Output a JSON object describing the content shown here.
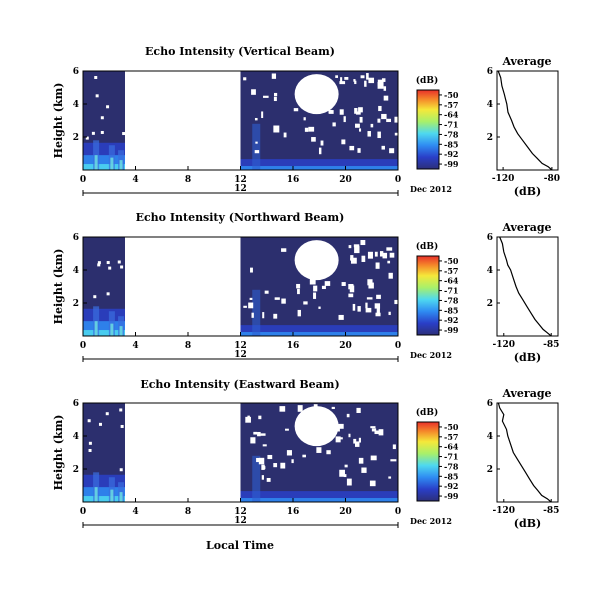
{
  "figure": {
    "xlabel": "Local Time",
    "ylabel": "Height (km)",
    "date_label": "Dec 2012",
    "day_label": "12",
    "avg_xlabel": "(dB)",
    "avg_title": "Average",
    "colorbar_unit": "(dB)",
    "colorbar_ticks": [
      "-50",
      "-57",
      "-64",
      "-71",
      "-78",
      "-85",
      "-92",
      "-99"
    ],
    "colorbar_range": [
      -99,
      -50
    ]
  },
  "chart_data": [
    {
      "type": "heatmap",
      "title": "Echo Intensity (Vertical Beam)",
      "xlabel": "",
      "ylabel": "Height (km)",
      "xticks": [
        "0",
        "4",
        "8",
        "12",
        "16",
        "20",
        "0"
      ],
      "yticks": [
        "6",
        "4",
        "2"
      ],
      "xlim": [
        0,
        24
      ],
      "ylim": [
        0,
        6
      ],
      "missing_data_hours": [
        3.2,
        12.0
      ],
      "colorbar_range_dB": [
        -99,
        -50
      ]
    },
    {
      "type": "line",
      "title": "Average",
      "xlabel": "(dB)",
      "ylabel": "",
      "xticks": [
        "-120",
        "-80"
      ],
      "yticks": [
        "6",
        "4",
        "2"
      ],
      "xlim": [
        -125,
        -75
      ],
      "ylim": [
        0,
        6
      ],
      "series": [
        {
          "x": [
            -124,
            -122,
            -121,
            -119,
            -118,
            -117,
            -116,
            -113,
            -111,
            -108,
            -104,
            -100,
            -96,
            -92,
            -88,
            -83,
            -80
          ],
          "y": [
            6.0,
            5.6,
            5.1,
            4.6,
            4.3,
            4.0,
            3.5,
            3.0,
            2.6,
            2.2,
            1.8,
            1.4,
            1.0,
            0.7,
            0.4,
            0.2,
            0.0
          ]
        }
      ]
    },
    {
      "type": "heatmap",
      "title": "Echo Intensity (Northward Beam)",
      "xlabel": "",
      "ylabel": "Height (km)",
      "xticks": [
        "0",
        "4",
        "8",
        "12",
        "16",
        "20",
        "0"
      ],
      "yticks": [
        "6",
        "4",
        "2"
      ],
      "xlim": [
        0,
        24
      ],
      "ylim": [
        0,
        6
      ],
      "missing_data_hours": [
        3.2,
        12.0
      ],
      "colorbar_range_dB": [
        -99,
        -50
      ]
    },
    {
      "type": "line",
      "title": "Average",
      "xlabel": "(dB)",
      "ylabel": "",
      "xticks": [
        "-120",
        "-85"
      ],
      "yticks": [
        "6",
        "4",
        "2"
      ],
      "xlim": [
        -125,
        -80
      ],
      "ylim": [
        0,
        6
      ],
      "series": [
        {
          "x": [
            -123,
            -121,
            -120,
            -118,
            -117,
            -115,
            -113,
            -111,
            -109,
            -106,
            -103,
            -100,
            -97,
            -94,
            -91,
            -88,
            -85
          ],
          "y": [
            6.0,
            5.6,
            5.1,
            4.6,
            4.3,
            4.0,
            3.5,
            3.0,
            2.6,
            2.2,
            1.8,
            1.4,
            1.0,
            0.7,
            0.4,
            0.2,
            0.0
          ]
        }
      ]
    },
    {
      "type": "heatmap",
      "title": "Echo Intensity (Eastward Beam)",
      "xlabel": "Local Time",
      "ylabel": "Height (km)",
      "xticks": [
        "0",
        "4",
        "8",
        "12",
        "16",
        "20",
        "0"
      ],
      "yticks": [
        "6",
        "4",
        "2"
      ],
      "xlim": [
        0,
        24
      ],
      "ylim": [
        0,
        6
      ],
      "missing_data_hours": [
        3.2,
        12.0
      ],
      "colorbar_range_dB": [
        -99,
        -50
      ]
    },
    {
      "type": "line",
      "title": "Average",
      "xlabel": "(dB)",
      "ylabel": "",
      "xticks": [
        "-120",
        "-85"
      ],
      "yticks": [
        "6",
        "4",
        "2"
      ],
      "xlim": [
        -125,
        -80
      ],
      "ylim": [
        0,
        6
      ],
      "series": [
        {
          "x": [
            -124,
            -123,
            -120,
            -121,
            -118,
            -117,
            -115,
            -113,
            -110,
            -107,
            -104,
            -101,
            -98,
            -95,
            -92,
            -88,
            -85
          ],
          "y": [
            6.0,
            5.7,
            5.3,
            4.9,
            4.4,
            4.0,
            3.5,
            3.0,
            2.6,
            2.2,
            1.8,
            1.4,
            1.0,
            0.7,
            0.4,
            0.2,
            0.0
          ]
        }
      ]
    }
  ]
}
